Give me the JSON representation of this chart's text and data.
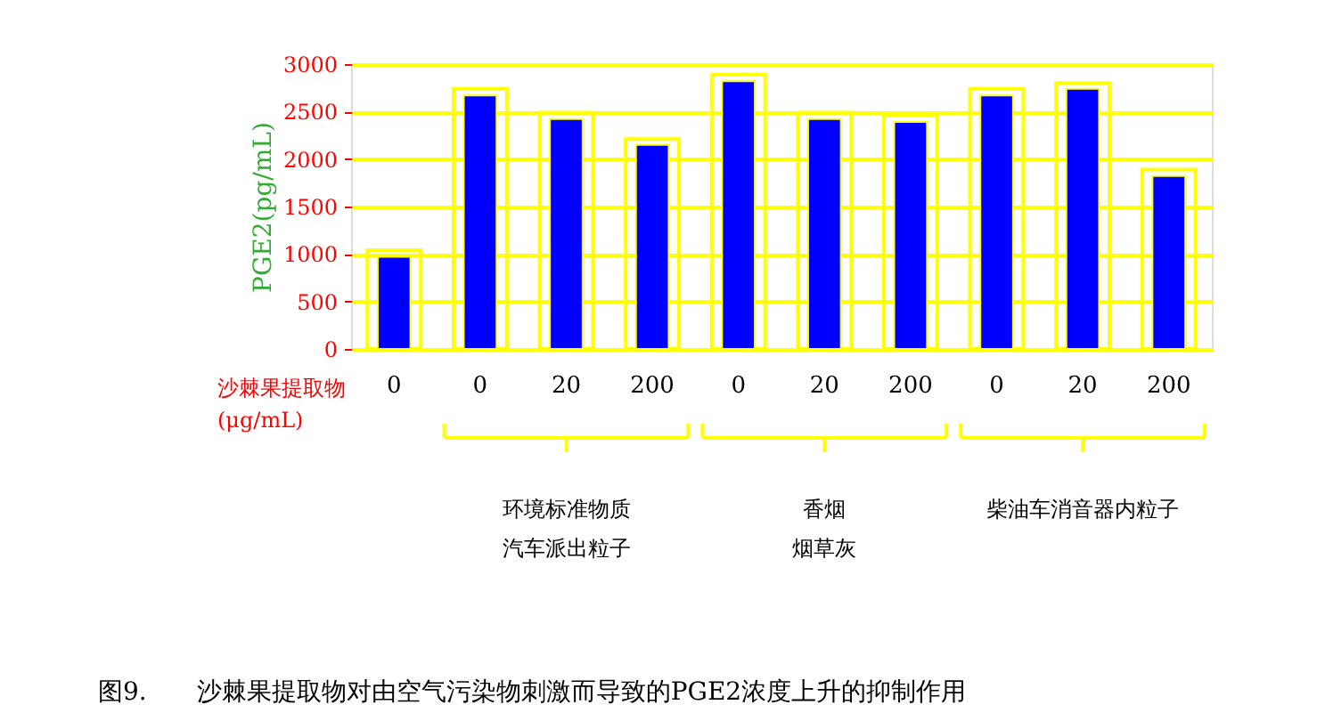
{
  "chart_data": {
    "type": "bar",
    "title": "图9.　　沙棘果提取物对由空气污染物刺激而导致的PGE2浓度上升的抑制作用",
    "xlabel": "沙棘果提取物(μg/mL)",
    "ylabel": "PGE2(pg/mL)",
    "categories": [
      "0",
      "0",
      "20",
      "200",
      "0",
      "20",
      "200",
      "0",
      "20",
      "200"
    ],
    "series": [
      {
        "color": "#ffff00",
        "values": [
          1040,
          2740,
          2490,
          2210,
          2890,
          2490,
          2460,
          2740,
          2800,
          1890
        ]
      },
      {
        "color": "#0000ff",
        "values": [
          970,
          2670,
          2420,
          2150,
          2820,
          2420,
          2390,
          2670,
          2740,
          1820
        ]
      }
    ],
    "ylim": [
      0,
      3000
    ],
    "yticks": [
      0,
      500,
      1000,
      1500,
      2000,
      2500,
      3000
    ],
    "grid": "y",
    "legend": false,
    "annotations": [
      "环境标准物质",
      "汽车派出粒子",
      "香烟",
      "烟草灰",
      "柴油车消音器内粒子"
    ]
  }
}
